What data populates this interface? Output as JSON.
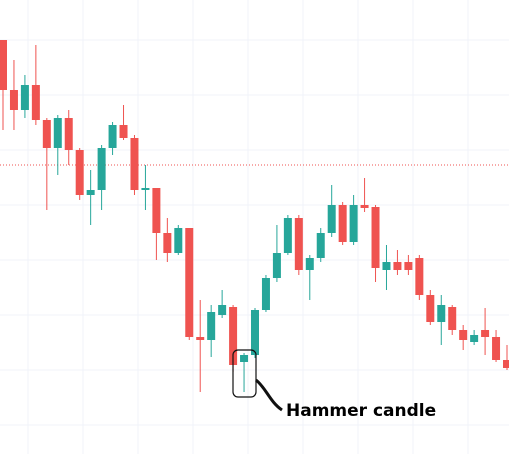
{
  "chart_data": {
    "type": "candlestick",
    "annotation": "Hammer candle",
    "up_color": "#26a69a",
    "down_color": "#ef5350",
    "ylim": [
      0,
      454
    ],
    "price_line": 289,
    "grid": true,
    "open": [
      414,
      364,
      344,
      369,
      334,
      306,
      336,
      304,
      259,
      264,
      306,
      329,
      316,
      264,
      266,
      221,
      201,
      226,
      117,
      114,
      139,
      147,
      92,
      99,
      144,
      176,
      201,
      236,
      184,
      196,
      221,
      249,
      212,
      249,
      247,
      184,
      192,
      192,
      196,
      159,
      132,
      147,
      124,
      112,
      124,
      117,
      94
    ],
    "high": [
      414,
      394,
      379,
      409,
      336,
      339,
      344,
      306,
      284,
      309,
      332,
      349,
      319,
      289,
      266,
      236,
      229,
      226,
      154,
      149,
      164,
      149,
      101,
      146,
      179,
      229,
      239,
      239,
      199,
      226,
      269,
      252,
      259,
      276,
      249,
      209,
      204,
      199,
      199,
      164,
      159,
      149,
      129,
      124,
      146,
      124,
      109
    ],
    "low": [
      324,
      324,
      336,
      329,
      244,
      279,
      289,
      254,
      229,
      244,
      299,
      314,
      259,
      244,
      194,
      192,
      199,
      114,
      62,
      97,
      136,
      82,
      62,
      96,
      142,
      172,
      199,
      179,
      154,
      192,
      217,
      209,
      209,
      242,
      172,
      164,
      179,
      179,
      154,
      129,
      109,
      119,
      104,
      109,
      99,
      92,
      84
    ],
    "close": [
      364,
      344,
      369,
      334,
      306,
      336,
      304,
      259,
      264,
      306,
      329,
      316,
      264,
      266,
      221,
      201,
      226,
      117,
      114,
      142,
      149,
      89,
      99,
      144,
      176,
      201,
      236,
      184,
      196,
      221,
      249,
      212,
      249,
      246,
      186,
      192,
      184,
      184,
      159,
      132,
      149,
      124,
      114,
      119,
      117,
      94,
      86
    ]
  }
}
